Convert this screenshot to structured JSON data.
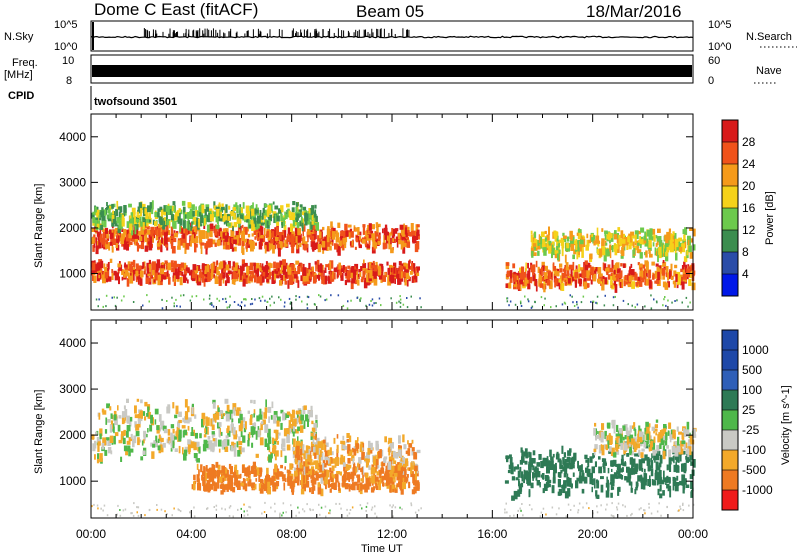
{
  "header": {
    "station": "Dome C East (fitACF)",
    "beam": "Beam 05",
    "date": "18/Mar/2016"
  },
  "noise_panel": {
    "left_label": "N.Sky",
    "left_ticks": [
      "10^5",
      "10^0"
    ],
    "right_label": "N.Search",
    "right_ticks": [
      "10^5",
      "10^0"
    ]
  },
  "freq_panel": {
    "left_label_1": "Freq.",
    "left_label_2": "[MHz]",
    "left_ticks": [
      "10",
      "8"
    ],
    "right_label": "Nave",
    "right_ticks": [
      "60",
      "0"
    ]
  },
  "cpid": {
    "label": "CPID",
    "program": "twofsound 3501"
  },
  "colors": {
    "power_scale": [
      "#0018e8",
      "#2a4ca8",
      "#3b8d4f",
      "#6cc94c",
      "#f5d21a",
      "#f59a1a",
      "#f0521a",
      "#d81a1a"
    ],
    "velocity_scale": [
      "#1e48a8",
      "#2f5fb8",
      "#2e7a55",
      "#4fb84a",
      "#c9c9c4",
      "#f3a92a",
      "#ee7a22",
      "#f01a1a"
    ]
  },
  "chart_data": [
    {
      "type": "heatmap",
      "name": "power",
      "xlabel": "",
      "ylabel": "Slant Range [km]",
      "x_ticks": [
        "00:00",
        "04:00",
        "08:00",
        "12:00",
        "16:00",
        "20:00",
        "00:00"
      ],
      "y_ticks": [
        1000,
        2000,
        3000,
        4000
      ],
      "ylim": [
        200,
        4500
      ],
      "colorbar": {
        "label": "Power [dB]",
        "ticks": [
          "4",
          "8",
          "12",
          "16",
          "20",
          "24",
          "28"
        ],
        "range": [
          0,
          32
        ]
      },
      "bands": [
        {
          "start_h": 0.0,
          "end_h": 13.0,
          "range_km": 1780,
          "thickness_km": 300,
          "value_db": 26
        },
        {
          "start_h": 0.0,
          "end_h": 13.0,
          "range_km": 1020,
          "thickness_km": 260,
          "value_db": 27
        },
        {
          "start_h": 0.0,
          "end_h": 9.0,
          "range_km": 2250,
          "thickness_km": 320,
          "value_db": 14
        },
        {
          "start_h": 16.5,
          "end_h": 24.0,
          "range_km": 950,
          "thickness_km": 300,
          "value_db": 25
        },
        {
          "start_h": 17.5,
          "end_h": 24.0,
          "range_km": 1650,
          "thickness_km": 350,
          "value_db": 18
        }
      ]
    },
    {
      "type": "heatmap",
      "name": "velocity",
      "xlabel": "Time UT",
      "ylabel": "Slant Range [km]",
      "x_ticks": [
        "00:00",
        "04:00",
        "08:00",
        "12:00",
        "16:00",
        "20:00",
        "00:00"
      ],
      "y_ticks": [
        1000,
        2000,
        3000,
        4000
      ],
      "ylim": [
        200,
        4500
      ],
      "colorbar": {
        "label": "Velocity [m s^-1]",
        "ticks": [
          "1000",
          "500",
          "100",
          "25",
          "-25",
          "-100",
          "-500",
          "-1000"
        ]
      },
      "bands": [
        {
          "start_h": 0.0,
          "end_h": 9.0,
          "range_km": 2100,
          "thickness_km": 700,
          "value_ms": 0
        },
        {
          "start_h": 4.0,
          "end_h": 13.0,
          "range_km": 1050,
          "thickness_km": 320,
          "value_ms": -150
        },
        {
          "start_h": 8.0,
          "end_h": 13.0,
          "range_km": 1500,
          "thickness_km": 500,
          "value_ms": -60
        },
        {
          "start_h": 16.5,
          "end_h": 24.0,
          "range_km": 1200,
          "thickness_km": 600,
          "value_ms": 300
        },
        {
          "start_h": 20.0,
          "end_h": 24.0,
          "range_km": 1900,
          "thickness_km": 400,
          "value_ms": 0
        }
      ]
    }
  ]
}
